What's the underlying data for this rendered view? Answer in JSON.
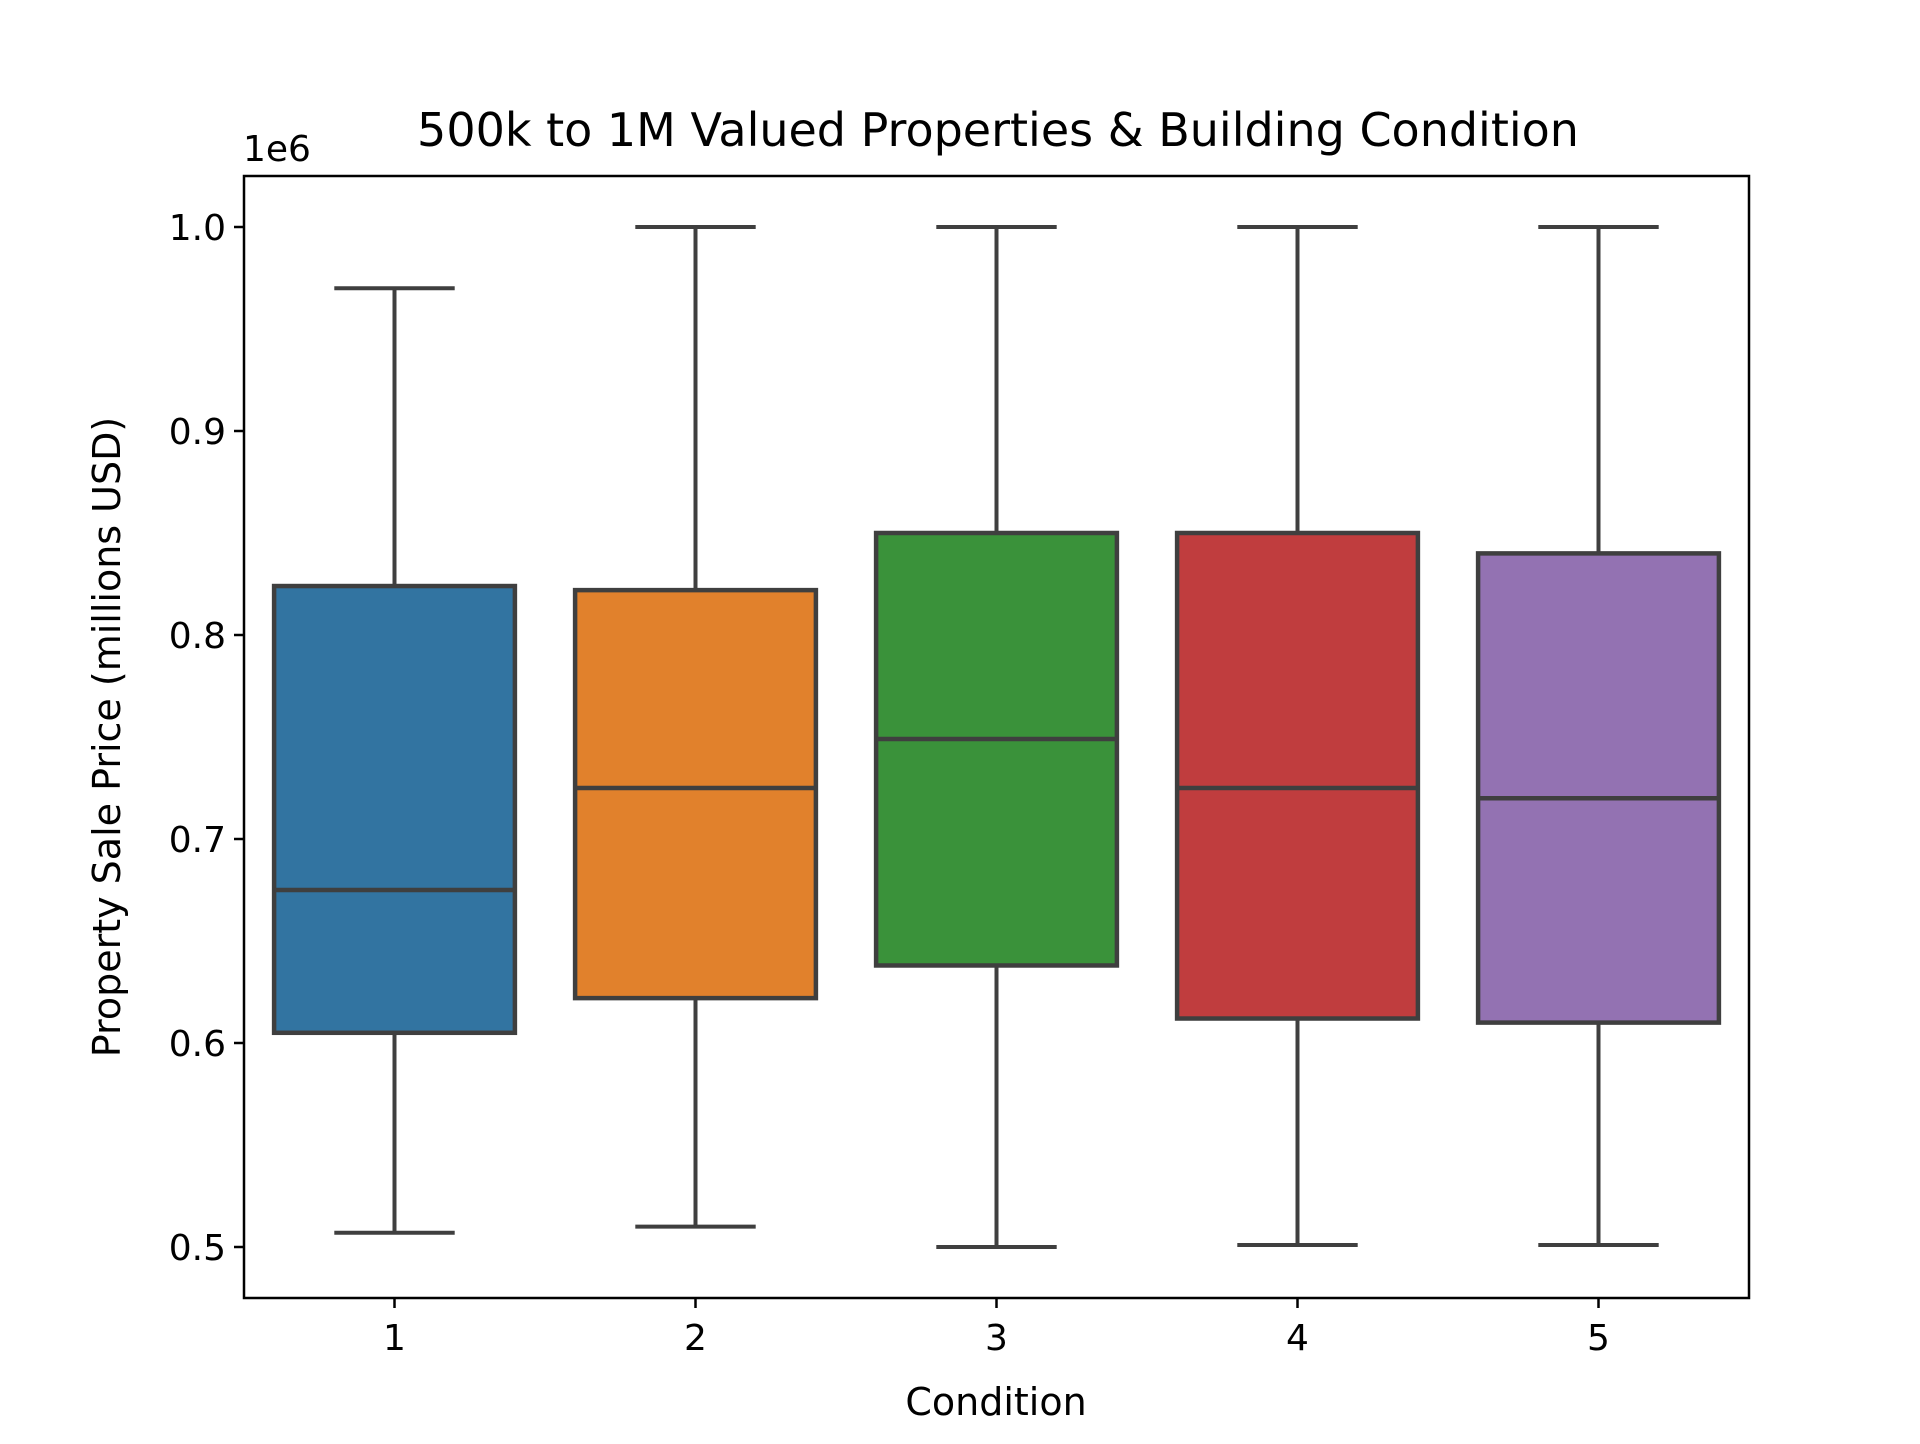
{
  "chart_data": {
    "type": "box",
    "title": "500k to 1M Valued Properties & Building Condition",
    "xlabel": "Condition",
    "ylabel": "Property Sale Price (millions USD)",
    "y_offset_label": "1e6",
    "y_scale_factor": 1000000,
    "categories": [
      "1",
      "2",
      "3",
      "4",
      "5"
    ],
    "ylim": [
      475000,
      1025000
    ],
    "yticks": [
      500000,
      600000,
      700000,
      800000,
      900000,
      1000000
    ],
    "ytick_labels": [
      "0.5",
      "0.6",
      "0.7",
      "0.8",
      "0.9",
      "1.0"
    ],
    "grid": false,
    "boxes": [
      {
        "category": "1",
        "whisker_low": 507000,
        "q1": 605000,
        "median": 675000,
        "q3": 824000,
        "whisker_high": 970000,
        "color": "#3274a1"
      },
      {
        "category": "2",
        "whisker_low": 510000,
        "q1": 622000,
        "median": 725000,
        "q3": 822000,
        "whisker_high": 1000000,
        "color": "#e1812c"
      },
      {
        "category": "3",
        "whisker_low": 500000,
        "q1": 638000,
        "median": 749000,
        "q3": 850000,
        "whisker_high": 1000000,
        "color": "#3a923a"
      },
      {
        "category": "4",
        "whisker_low": 501000,
        "q1": 612000,
        "median": 725000,
        "q3": 850000,
        "whisker_high": 1000000,
        "color": "#c03d3e"
      },
      {
        "category": "5",
        "whisker_low": 501000,
        "q1": 610000,
        "median": 720000,
        "q3": 840000,
        "whisker_high": 1000000,
        "color": "#9372b2"
      }
    ],
    "line_color": "#3f3f3f"
  }
}
